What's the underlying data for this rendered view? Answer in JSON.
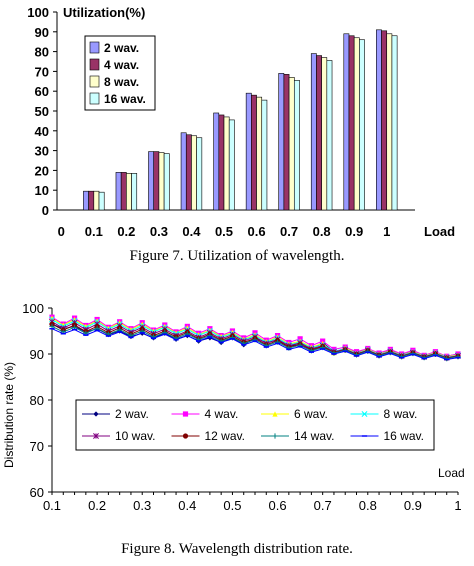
{
  "figure7": {
    "caption": "Figure 7. Utilization of wavelength.",
    "chart_data": {
      "type": "bar",
      "title": "Utilization(%)",
      "xlabel": "Load",
      "ylabel": "",
      "ylim": [
        0,
        100
      ],
      "yticks": [
        0,
        10,
        20,
        30,
        40,
        50,
        60,
        70,
        80,
        90,
        100
      ],
      "categories": [
        "0",
        "0.1",
        "0.2",
        "0.3",
        "0.4",
        "0.5",
        "0.6",
        "0.7",
        "0.8",
        "0.9",
        "1"
      ],
      "legend_position": "top-left",
      "grid": false,
      "series": [
        {
          "name": "2 wav.",
          "color": "#9999ff",
          "values": [
            0,
            9.5,
            19,
            29.5,
            39,
            49,
            59,
            69,
            79,
            89,
            91
          ]
        },
        {
          "name": "4 wav.",
          "color": "#993366",
          "values": [
            0,
            9.5,
            19,
            29.5,
            38,
            48,
            58,
            68.5,
            78,
            88,
            90.5
          ]
        },
        {
          "name": "8 wav.",
          "color": "#ffffcc",
          "values": [
            0,
            9.5,
            18.5,
            29,
            37.5,
            47,
            57,
            67,
            77,
            87,
            89
          ]
        },
        {
          "name": "16 wav.",
          "color": "#ccffff",
          "values": [
            0,
            9,
            18.5,
            28.5,
            36.5,
            45.5,
            55.5,
            65.5,
            75.5,
            86,
            88
          ]
        }
      ]
    }
  },
  "figure8": {
    "caption": "Figure 8. Wavelength distribution rate.",
    "chart_data": {
      "type": "line",
      "title": "",
      "xlabel": "Load",
      "ylabel": "Distribution rate (%)",
      "ylim": [
        60,
        100
      ],
      "xlim": [
        0.1,
        1
      ],
      "yticks": [
        60,
        70,
        80,
        90,
        100
      ],
      "xticks": [
        "0.1",
        "0.2",
        "0.3",
        "0.4",
        "0.5",
        "0.6",
        "0.7",
        "0.8",
        "0.9",
        "1"
      ],
      "legend_position": "center",
      "grid": false,
      "x": [
        0.1,
        0.125,
        0.15,
        0.175,
        0.2,
        0.225,
        0.25,
        0.275,
        0.3,
        0.325,
        0.35,
        0.375,
        0.4,
        0.425,
        0.45,
        0.475,
        0.5,
        0.525,
        0.55,
        0.575,
        0.6,
        0.625,
        0.65,
        0.675,
        0.7,
        0.725,
        0.75,
        0.775,
        0.8,
        0.825,
        0.85,
        0.875,
        0.9,
        0.925,
        0.95,
        0.975,
        1.0
      ],
      "series": [
        {
          "name": "2 wav.",
          "color": "#000080",
          "marker": "diamond",
          "values": [
            96.5,
            95.5,
            96,
            94.8,
            95.5,
            94.2,
            95,
            93.8,
            94.5,
            93.5,
            94.5,
            93.2,
            94,
            92.8,
            93.5,
            92.5,
            93.5,
            92,
            93.5,
            92.5,
            93,
            91.5,
            92.5,
            91,
            92.5,
            90.5,
            91.2,
            90.3,
            91,
            90,
            90.8,
            89.8,
            90.6,
            89.6,
            90.4,
            89.5,
            90
          ]
        },
        {
          "name": "4 wav.",
          "color": "#ff00ff",
          "marker": "square",
          "values": [
            98,
            96.5,
            97.8,
            96.2,
            97.5,
            95.8,
            97,
            95.5,
            96.8,
            95.2,
            96.3,
            94.8,
            96,
            94.5,
            95.5,
            94,
            95,
            93.5,
            94.6,
            93,
            94,
            92.5,
            93.3,
            91.8,
            92.8,
            91,
            91.5,
            90.5,
            91.2,
            90.2,
            91,
            90,
            90.8,
            89.7,
            90.5,
            89.5,
            90
          ]
        },
        {
          "name": "6 wav.",
          "color": "#ffff00",
          "marker": "triangle",
          "values": [
            97.8,
            96.3,
            97.5,
            96,
            97.2,
            95.6,
            96.8,
            95.3,
            96.5,
            95,
            96,
            94.6,
            95.7,
            94.2,
            95.2,
            93.8,
            94.7,
            93.2,
            94.2,
            92.7,
            93.7,
            92.2,
            92.8,
            91.5,
            92.3,
            90.3,
            91.3,
            90.2,
            91,
            90,
            90.7,
            89.8,
            90.5,
            89.6,
            90.3,
            89.4,
            89.8
          ]
        },
        {
          "name": "8 wav.",
          "color": "#00ffff",
          "marker": "x",
          "values": [
            97.5,
            96,
            97.2,
            95.7,
            97,
            95.4,
            96.5,
            95,
            96.2,
            94.8,
            95.8,
            94.4,
            95.4,
            94,
            95,
            93.6,
            94.5,
            93,
            94,
            92.5,
            93.5,
            92,
            92.6,
            91.3,
            92,
            90.6,
            91.1,
            90.1,
            90.9,
            89.9,
            90.6,
            89.7,
            90.4,
            89.5,
            90.2,
            89.3,
            89.7
          ]
        },
        {
          "name": "10 wav.",
          "color": "#800080",
          "marker": "star",
          "values": [
            97,
            95.6,
            96.8,
            95.3,
            96.5,
            95,
            96.1,
            94.7,
            95.8,
            94.4,
            95.4,
            94,
            95,
            93.6,
            94.6,
            93.3,
            94.2,
            92.8,
            93.7,
            92.3,
            93.2,
            91.8,
            92.4,
            91.1,
            91.8,
            90.5,
            91,
            90,
            90.8,
            89.8,
            90.5,
            89.6,
            90.3,
            89.4,
            90.1,
            89.2,
            89.6
          ]
        },
        {
          "name": "12 wav.",
          "color": "#800000",
          "marker": "circle",
          "values": [
            96.5,
            95.2,
            96.3,
            94.9,
            96,
            94.6,
            95.7,
            94.3,
            95.4,
            94,
            95,
            93.7,
            94.7,
            93.3,
            94.3,
            93,
            93.9,
            92.5,
            93.4,
            92,
            92.9,
            91.5,
            92.1,
            90.9,
            91.6,
            90.3,
            90.9,
            89.9,
            90.7,
            89.7,
            90.4,
            89.5,
            90.2,
            89.3,
            90,
            89.1,
            89.5
          ]
        },
        {
          "name": "14 wav.",
          "color": "#008080",
          "marker": "plus",
          "values": [
            96,
            94.8,
            95.8,
            94.5,
            95.6,
            94.3,
            95.3,
            94,
            95,
            93.7,
            94.7,
            93.4,
            94.4,
            93.1,
            94,
            92.8,
            93.6,
            92.3,
            93.1,
            91.8,
            92.6,
            91.3,
            91.9,
            90.7,
            91.4,
            90.2,
            90.8,
            89.8,
            90.6,
            89.6,
            90.3,
            89.4,
            90.1,
            89.2,
            89.9,
            89,
            89.4
          ]
        },
        {
          "name": "16 wav.",
          "color": "#0000ff",
          "marker": "dash",
          "values": [
            95.5,
            94.4,
            95.3,
            94.1,
            95.1,
            93.9,
            94.8,
            93.6,
            94.6,
            93.4,
            94.3,
            93.1,
            94,
            92.8,
            93.7,
            92.5,
            93.3,
            92,
            92.8,
            91.5,
            92.3,
            91,
            91.6,
            90.4,
            91.1,
            90,
            90.6,
            89.6,
            90.4,
            89.4,
            90.1,
            89.2,
            89.9,
            89,
            89.7,
            88.8,
            89.2
          ]
        }
      ]
    }
  }
}
